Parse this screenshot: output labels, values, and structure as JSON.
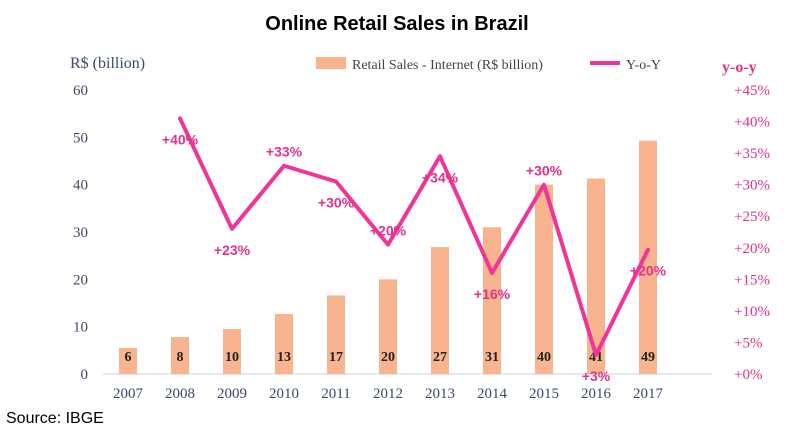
{
  "title": "Online Retail Sales in Brazil",
  "source": "Source: IBGE",
  "colors": {
    "bar": "#f7b48e",
    "line": "#f0359a",
    "left_axis": "#3b4a6b",
    "right_axis": "#e0338a"
  },
  "chart_data": {
    "type": "bar+line",
    "title": "Online Retail Sales in Brazil",
    "categories": [
      "2007",
      "2008",
      "2009",
      "2010",
      "2011",
      "2012",
      "2013",
      "2014",
      "2015",
      "2016",
      "2017"
    ],
    "left_axis": {
      "label": "R$ (billion)",
      "ylim": [
        0,
        60
      ],
      "ticks": [
        "0",
        "10",
        "20",
        "30",
        "40",
        "50",
        "60"
      ]
    },
    "right_axis": {
      "label": "y-o-y",
      "ylim": [
        0,
        45
      ],
      "ticks": [
        "+0%",
        "+5%",
        "+10%",
        "+15%",
        "+20%",
        "+25%",
        "+30%",
        "+35%",
        "+40%",
        "+45%"
      ]
    },
    "series": [
      {
        "name": "Retail Sales - Internet (R$ billion)",
        "type": "bar",
        "axis": "left",
        "values": [
          5.5,
          7.8,
          9.5,
          12.7,
          16.6,
          20,
          26.8,
          31,
          40,
          41.3,
          49.3
        ],
        "labels": [
          "6",
          "8",
          "10",
          "13",
          "17",
          "20",
          "27",
          "31",
          "40",
          "41",
          "49"
        ]
      },
      {
        "name": "Y-o-Y",
        "type": "line",
        "axis": "right",
        "values": [
          null,
          40.5,
          23,
          33,
          30.5,
          20.5,
          34.5,
          16,
          30,
          3,
          19.7
        ],
        "labels": [
          "",
          "+40%",
          "+23%",
          "+33%",
          "+30%",
          "+20%",
          "+34%",
          "+16%",
          "+30%",
          "+3%",
          "+20%"
        ]
      }
    ],
    "legend_position": "top",
    "grid": false
  }
}
